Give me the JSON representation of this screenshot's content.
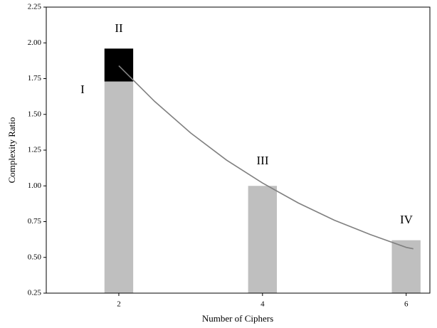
{
  "chart_data": {
    "type": "bar",
    "x": [
      2,
      4,
      6
    ],
    "series": [
      {
        "color": "#bfbfbf",
        "values": [
          1.73,
          1.0,
          0.62
        ]
      },
      {
        "color": "#000000",
        "values": [
          0.23,
          null,
          null
        ]
      }
    ],
    "curve": {
      "color": "#808080",
      "x": [
        2,
        2.5,
        3,
        3.5,
        4,
        4.5,
        5,
        5.5,
        6,
        6.1
      ],
      "values": [
        1.84,
        1.59,
        1.37,
        1.18,
        1.02,
        0.88,
        0.76,
        0.66,
        0.57,
        0.56
      ]
    },
    "annotations": [
      "I",
      "II",
      "III",
      "IV"
    ],
    "xlabel": "Number of Ciphers",
    "ylabel": "Complexity Ratio",
    "xlim": [
      0.99,
      6.33
    ],
    "ylim": [
      0.25,
      2.25
    ],
    "xticks": [
      2,
      4,
      6
    ],
    "yticks": [
      {
        "value": 0.25,
        "label": "0.25"
      },
      {
        "value": 0.5,
        "label": "0.50"
      },
      {
        "value": 0.75,
        "label": "0.75"
      },
      {
        "value": 1,
        "label": "1.00"
      },
      {
        "value": 1.25,
        "label": "1.25"
      },
      {
        "value": 1.5,
        "label": "1.50"
      },
      {
        "value": 1.75,
        "label": "1.75"
      },
      {
        "value": 2,
        "label": "2.00"
      },
      {
        "value": 2.25,
        "label": "2.25"
      }
    ]
  }
}
